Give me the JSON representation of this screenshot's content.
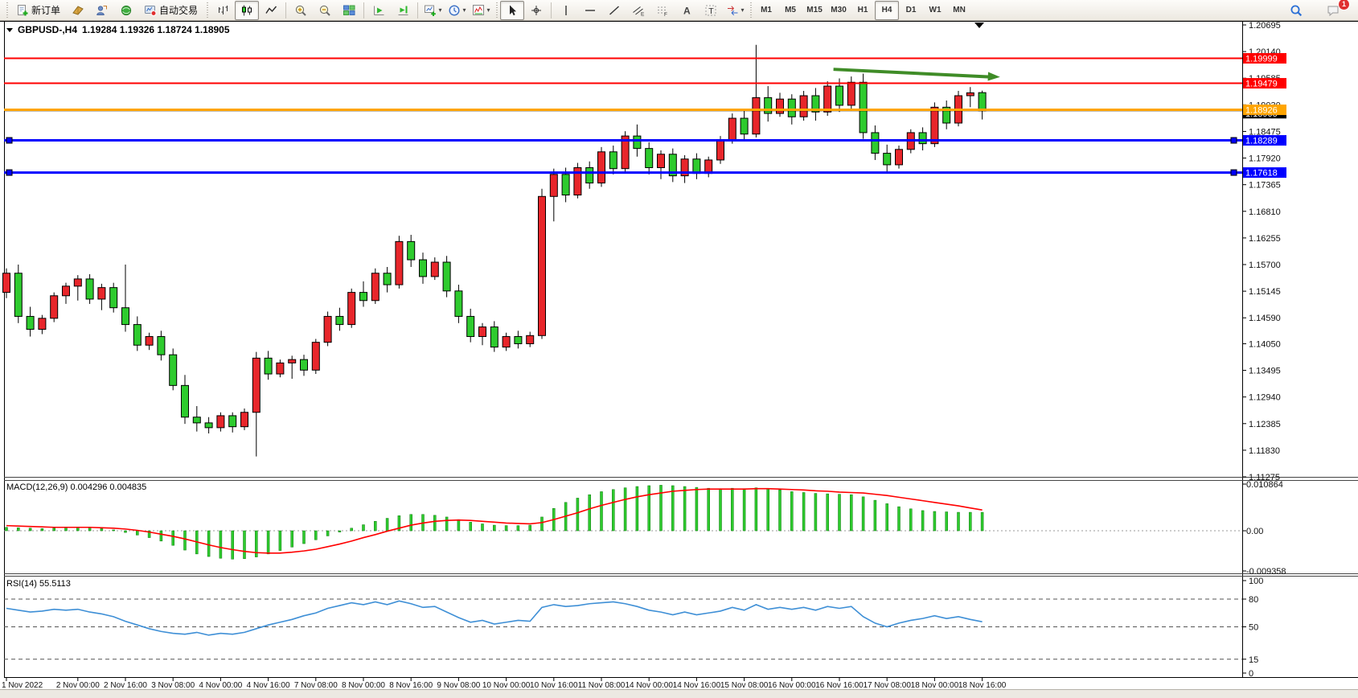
{
  "toolbar": {
    "file_group": [
      {
        "name": "new-order-button",
        "icon": "doc-plus",
        "label": "新订单"
      },
      {
        "name": "market-watch-button",
        "icon": "book"
      },
      {
        "name": "data-window-button",
        "icon": "person-chart"
      },
      {
        "name": "news-alerts-button",
        "icon": "sphere"
      },
      {
        "name": "autotrading-button",
        "icon": "autotrade",
        "label": "自动交易"
      }
    ],
    "chart_group": [
      {
        "name": "bar-chart-button",
        "icon": "bars"
      },
      {
        "name": "candlestick-button",
        "icon": "candles",
        "active": true
      },
      {
        "name": "line-chart-button",
        "icon": "linechart"
      },
      {
        "name": "sep"
      },
      {
        "name": "zoom-in-button",
        "icon": "zoom-in"
      },
      {
        "name": "zoom-out-button",
        "icon": "zoom-out"
      },
      {
        "name": "tile-windows-button",
        "icon": "tiles"
      },
      {
        "name": "sep"
      },
      {
        "name": "auto-scroll-button",
        "icon": "autoscroll"
      },
      {
        "name": "chart-shift-button",
        "icon": "chartshift"
      },
      {
        "name": "sep"
      },
      {
        "name": "new-chart-button",
        "icon": "new-chart",
        "dropdown": true
      },
      {
        "name": "profiles-button",
        "icon": "clock",
        "dropdown": true
      },
      {
        "name": "indicators-button",
        "icon": "indicator",
        "dropdown": true
      }
    ],
    "tools_group": [
      {
        "name": "cursor-button",
        "icon": "cursor",
        "active": true
      },
      {
        "name": "crosshair-button",
        "icon": "crosshair"
      },
      {
        "name": "sep"
      },
      {
        "name": "vertical-line-button",
        "icon": "vline"
      },
      {
        "name": "horizontal-line-button",
        "icon": "hline"
      },
      {
        "name": "trendline-button",
        "icon": "trendline"
      },
      {
        "name": "equidistant-channel-button",
        "icon": "channel"
      },
      {
        "name": "fibonacci-button",
        "icon": "fibo"
      },
      {
        "name": "text-button",
        "icon": "textA"
      },
      {
        "name": "text-label-button",
        "icon": "labelT"
      },
      {
        "name": "arrows-button",
        "icon": "shapes",
        "dropdown": true
      }
    ],
    "timeframes": [
      "M1",
      "M5",
      "M15",
      "M30",
      "H1",
      "H4",
      "D1",
      "W1",
      "MN"
    ],
    "active_timeframe": "H4",
    "chat_badge": "1"
  },
  "chart": {
    "title": "GBPUSD-,H4",
    "ohlc": "1.19284 1.19326 1.18724 1.18905"
  },
  "indicators": {
    "macd_label": "MACD(12,26,9) 0.004296 0.004835",
    "rsi_label": "RSI(14) 55.5113"
  },
  "price_axis": {
    "ticks": [
      "1.20695",
      "1.20140",
      "1.19585",
      "1.19030",
      "1.18475",
      "1.17920",
      "1.17365",
      "1.16810",
      "1.16255",
      "1.15700",
      "1.15145",
      "1.14590",
      "1.14050",
      "1.13495",
      "1.12940",
      "1.12385",
      "1.11830",
      "1.11275"
    ]
  },
  "overlays": {
    "hlines": [
      {
        "price": 1.19999,
        "color": "#ff0000",
        "width": 2,
        "badge": "1.19999",
        "badge_bg": "#ff0000",
        "handles": false
      },
      {
        "price": 1.19479,
        "color": "#ff0000",
        "width": 2,
        "badge": "1.19479",
        "badge_bg": "#ff0000",
        "handles": false
      },
      {
        "price": 1.18905,
        "color": "#000000",
        "width": 1,
        "badge": "1.18905",
        "badge_bg": "#000000",
        "handles": false
      },
      {
        "price": 1.18926,
        "color": "#ffa500",
        "width": 3,
        "badge": "1.18926",
        "badge_bg": "#ffa500",
        "handles": false
      },
      {
        "price": 1.18289,
        "color": "#0000ff",
        "width": 3,
        "badge": "1.18289",
        "badge_bg": "#0000ff",
        "handles": true
      },
      {
        "price": 1.17618,
        "color": "#0000ff",
        "width": 3,
        "badge": "1.17618",
        "badge_bg": "#0000ff",
        "handles": true
      }
    ],
    "arrow": {
      "from_index": 69.5,
      "from_price": 1.1977,
      "to_index": 83.5,
      "to_price": 1.1961,
      "color": "#3f8c27"
    }
  },
  "chart_data": [
    {
      "type": "candlestick",
      "symbol": "GBPUSD-",
      "timeframe": "H4",
      "up_color": "#e8262b",
      "down_color": "#2ecb2e",
      "ylim": [
        1.11275,
        1.20695
      ],
      "time_labels": [
        "1 Nov 2022",
        "2 Nov 00:00",
        "2 Nov 16:00",
        "3 Nov 08:00",
        "4 Nov 00:00",
        "4 Nov 16:00",
        "7 Nov 08:00",
        "8 Nov 00:00",
        "8 Nov 16:00",
        "9 Nov 08:00",
        "10 Nov 00:00",
        "10 Nov 16:00",
        "11 Nov 08:00",
        "14 Nov 00:00",
        "14 Nov 16:00",
        "15 Nov 08:00",
        "16 Nov 00:00",
        "16 Nov 16:00",
        "17 Nov 08:00",
        "18 Nov 00:00",
        "18 Nov 16:00"
      ],
      "label_indices": [
        0,
        6,
        10,
        14,
        18,
        22,
        26,
        30,
        34,
        38,
        42,
        46,
        50,
        54,
        58,
        62,
        66,
        70,
        74,
        78,
        82
      ],
      "candles": [
        [
          1.1512,
          1.1562,
          1.15,
          1.1552
        ],
        [
          1.1552,
          1.157,
          1.1448,
          1.1462
        ],
        [
          1.1462,
          1.1482,
          1.142,
          1.1435
        ],
        [
          1.1435,
          1.1465,
          1.1425,
          1.1458
        ],
        [
          1.1458,
          1.1512,
          1.145,
          1.1505
        ],
        [
          1.1505,
          1.1532,
          1.1488,
          1.1525
        ],
        [
          1.1525,
          1.1548,
          1.1495,
          1.154
        ],
        [
          1.154,
          1.155,
          1.1488,
          1.1498
        ],
        [
          1.1498,
          1.153,
          1.1475,
          1.1522
        ],
        [
          1.1522,
          1.1532,
          1.147,
          1.148
        ],
        [
          1.148,
          1.157,
          1.143,
          1.1445
        ],
        [
          1.1445,
          1.1462,
          1.139,
          1.1402
        ],
        [
          1.1402,
          1.1428,
          1.1392,
          1.142
        ],
        [
          1.142,
          1.1432,
          1.137,
          1.1382
        ],
        [
          1.1382,
          1.1395,
          1.1308,
          1.1318
        ],
        [
          1.1318,
          1.134,
          1.1238,
          1.1252
        ],
        [
          1.1252,
          1.1275,
          1.1222,
          1.124
        ],
        [
          1.124,
          1.1252,
          1.1218,
          1.123
        ],
        [
          1.123,
          1.1262,
          1.1222,
          1.1255
        ],
        [
          1.1255,
          1.1262,
          1.122,
          1.1232
        ],
        [
          1.1232,
          1.127,
          1.1225,
          1.1262
        ],
        [
          1.1262,
          1.1388,
          1.117,
          1.1375
        ],
        [
          1.1375,
          1.139,
          1.133,
          1.1342
        ],
        [
          1.1342,
          1.1372,
          1.1335,
          1.1365
        ],
        [
          1.1365,
          1.138,
          1.1332,
          1.1372
        ],
        [
          1.1372,
          1.1382,
          1.1338,
          1.135
        ],
        [
          1.135,
          1.1415,
          1.1342,
          1.1408
        ],
        [
          1.1408,
          1.1472,
          1.14,
          1.1462
        ],
        [
          1.1462,
          1.148,
          1.1432,
          1.1445
        ],
        [
          1.1445,
          1.152,
          1.1438,
          1.1512
        ],
        [
          1.1512,
          1.1535,
          1.1482,
          1.1495
        ],
        [
          1.1495,
          1.1562,
          1.1488,
          1.1552
        ],
        [
          1.1552,
          1.1565,
          1.1512,
          1.1528
        ],
        [
          1.1528,
          1.163,
          1.152,
          1.1618
        ],
        [
          1.1618,
          1.1632,
          1.1565,
          1.158
        ],
        [
          1.158,
          1.1595,
          1.153,
          1.1545
        ],
        [
          1.1545,
          1.1585,
          1.1538,
          1.1575
        ],
        [
          1.1575,
          1.1588,
          1.1502,
          1.1515
        ],
        [
          1.1515,
          1.1528,
          1.1448,
          1.1462
        ],
        [
          1.1462,
          1.1478,
          1.1408,
          1.142
        ],
        [
          1.142,
          1.1448,
          1.1402,
          1.144
        ],
        [
          1.144,
          1.1452,
          1.1388,
          1.1398
        ],
        [
          1.1398,
          1.1428,
          1.139,
          1.142
        ],
        [
          1.142,
          1.1432,
          1.1395,
          1.1405
        ],
        [
          1.1405,
          1.143,
          1.1398,
          1.1422
        ],
        [
          1.1422,
          1.1728,
          1.1415,
          1.1712
        ],
        [
          1.1712,
          1.177,
          1.166,
          1.1758
        ],
        [
          1.1758,
          1.1772,
          1.17,
          1.1715
        ],
        [
          1.1715,
          1.1782,
          1.1708,
          1.1772
        ],
        [
          1.1772,
          1.1785,
          1.1728,
          1.174
        ],
        [
          1.174,
          1.1815,
          1.1732,
          1.1805
        ],
        [
          1.1805,
          1.1818,
          1.1758,
          1.177
        ],
        [
          1.177,
          1.1848,
          1.1762,
          1.1838
        ],
        [
          1.1838,
          1.1862,
          1.1795,
          1.1812
        ],
        [
          1.1812,
          1.1825,
          1.1758,
          1.1772
        ],
        [
          1.1772,
          1.1808,
          1.1748,
          1.18
        ],
        [
          1.18,
          1.1812,
          1.1742,
          1.1755
        ],
        [
          1.1755,
          1.1798,
          1.174,
          1.179
        ],
        [
          1.179,
          1.1802,
          1.1748,
          1.176
        ],
        [
          1.176,
          1.1795,
          1.1752,
          1.1788
        ],
        [
          1.1788,
          1.1838,
          1.178,
          1.183
        ],
        [
          1.183,
          1.1885,
          1.1822,
          1.1875
        ],
        [
          1.1875,
          1.189,
          1.1828,
          1.1842
        ],
        [
          1.1842,
          1.2028,
          1.1835,
          1.1918
        ],
        [
          1.1918,
          1.1942,
          1.1868,
          1.1885
        ],
        [
          1.1885,
          1.1928,
          1.1878,
          1.1915
        ],
        [
          1.1915,
          1.1925,
          1.1862,
          1.1878
        ],
        [
          1.1878,
          1.1932,
          1.187,
          1.1922
        ],
        [
          1.1922,
          1.1938,
          1.187,
          1.1888
        ],
        [
          1.1888,
          1.1952,
          1.188,
          1.1942
        ],
        [
          1.1942,
          1.1958,
          1.1888,
          1.1902
        ],
        [
          1.1902,
          1.1962,
          1.1892,
          1.195
        ],
        [
          1.195,
          1.1968,
          1.1832,
          1.1845
        ],
        [
          1.1845,
          1.186,
          1.1788,
          1.1802
        ],
        [
          1.1802,
          1.182,
          1.1762,
          1.1778
        ],
        [
          1.1778,
          1.1818,
          1.177,
          1.181
        ],
        [
          1.181,
          1.1852,
          1.1802,
          1.1845
        ],
        [
          1.1845,
          1.1856,
          1.1808,
          1.1822
        ],
        [
          1.1822,
          1.1908,
          1.1815,
          1.1898
        ],
        [
          1.1898,
          1.1912,
          1.1852,
          1.1865
        ],
        [
          1.1865,
          1.1932,
          1.1858,
          1.1922
        ],
        [
          1.1922,
          1.194,
          1.1898,
          1.1928
        ],
        [
          1.19284,
          1.19326,
          1.18724,
          1.18905
        ]
      ]
    },
    {
      "type": "macd",
      "title": "MACD(12,26,9)",
      "params": "12,26,9",
      "macd_current": 0.004296,
      "signal_current": 0.004835,
      "histogram_color": "#2ecb2e",
      "signal_color": "#ff0000",
      "ylim": [
        -0.009358,
        0.010864
      ],
      "y_ticks": [
        {
          "label": "0.010864",
          "value": 0.010864
        },
        {
          "label": "0.00",
          "value": 0
        },
        {
          "label": "-0.009358",
          "value": -0.009358
        }
      ],
      "values": [
        0.0008,
        0.0007,
        0.0006,
        0.0005,
        0.0006,
        0.0007,
        0.0008,
        0.0007,
        0.0005,
        0.0002,
        -0.0004,
        -0.001,
        -0.0016,
        -0.0024,
        -0.0034,
        -0.0045,
        -0.0054,
        -0.006,
        -0.0064,
        -0.0066,
        -0.0065,
        -0.0061,
        -0.0054,
        -0.0046,
        -0.0038,
        -0.003,
        -0.0021,
        -0.0012,
        -0.0003,
        0.0006,
        0.0014,
        0.0022,
        0.0029,
        0.0035,
        0.0038,
        0.0038,
        0.0036,
        0.0032,
        0.0026,
        0.002,
        0.0016,
        0.0013,
        0.0012,
        0.0012,
        0.0013,
        0.0032,
        0.0052,
        0.0066,
        0.0076,
        0.0084,
        0.0091,
        0.0096,
        0.01,
        0.0103,
        0.0105,
        0.0106,
        0.0105,
        0.0103,
        0.0101,
        0.0099,
        0.0098,
        0.0099,
        0.0098,
        0.01,
        0.0098,
        0.0095,
        0.0091,
        0.0089,
        0.0087,
        0.0086,
        0.0085,
        0.0084,
        0.0079,
        0.0071,
        0.0063,
        0.0056,
        0.0051,
        0.0047,
        0.0045,
        0.0044,
        0.0043,
        0.0043,
        0.004296
      ],
      "signal": [
        0.0012,
        0.0011,
        0.001,
        0.0009,
        0.0008,
        0.0008,
        0.0008,
        0.0008,
        0.0007,
        0.0006,
        0.0004,
        0.0001,
        -0.0003,
        -0.0008,
        -0.0013,
        -0.0019,
        -0.0026,
        -0.0033,
        -0.0039,
        -0.0044,
        -0.0048,
        -0.0051,
        -0.0052,
        -0.0052,
        -0.005,
        -0.0047,
        -0.0043,
        -0.0037,
        -0.0031,
        -0.0024,
        -0.0016,
        -0.0009,
        -0.0001,
        0.0006,
        0.0013,
        0.0018,
        0.0022,
        0.0024,
        0.0025,
        0.0024,
        0.0022,
        0.002,
        0.0018,
        0.0017,
        0.0016,
        0.0019,
        0.0026,
        0.0034,
        0.0042,
        0.0051,
        0.0059,
        0.0066,
        0.0073,
        0.0079,
        0.0084,
        0.0088,
        0.0092,
        0.0094,
        0.0096,
        0.0097,
        0.0097,
        0.0097,
        0.0097,
        0.0098,
        0.0098,
        0.0097,
        0.0096,
        0.0095,
        0.0093,
        0.0092,
        0.009,
        0.0089,
        0.0088,
        0.0085,
        0.0082,
        0.0078,
        0.0074,
        0.007,
        0.0066,
        0.0062,
        0.0058,
        0.0053,
        0.004835
      ]
    },
    {
      "type": "rsi",
      "title": "RSI(14)",
      "period": 14,
      "current": 55.5113,
      "line_color": "#3e8fd6",
      "ylim": [
        0,
        100
      ],
      "levels": [
        80,
        50,
        15
      ],
      "y_ticks": [
        {
          "label": "100",
          "value": 100
        },
        {
          "label": "80",
          "value": 80
        },
        {
          "label": "50",
          "value": 50
        },
        {
          "label": "15",
          "value": 15
        },
        {
          "label": "0",
          "value": 0
        }
      ],
      "values": [
        70,
        68,
        66,
        67,
        69,
        68,
        69,
        66,
        64,
        61,
        56,
        52,
        48,
        45,
        43,
        42,
        44,
        41,
        43,
        42,
        44,
        48,
        52,
        55,
        58,
        62,
        65,
        70,
        73,
        76,
        74,
        77,
        74,
        78,
        75,
        71,
        72,
        66,
        60,
        55,
        57,
        53,
        55,
        57,
        56,
        71,
        74,
        72,
        73,
        75,
        76,
        77,
        75,
        72,
        68,
        66,
        63,
        66,
        63,
        65,
        67,
        71,
        68,
        74,
        69,
        71,
        69,
        71,
        68,
        72,
        70,
        72,
        61,
        54,
        50,
        54,
        57,
        59,
        62,
        59,
        61,
        58,
        55.5113
      ]
    }
  ]
}
